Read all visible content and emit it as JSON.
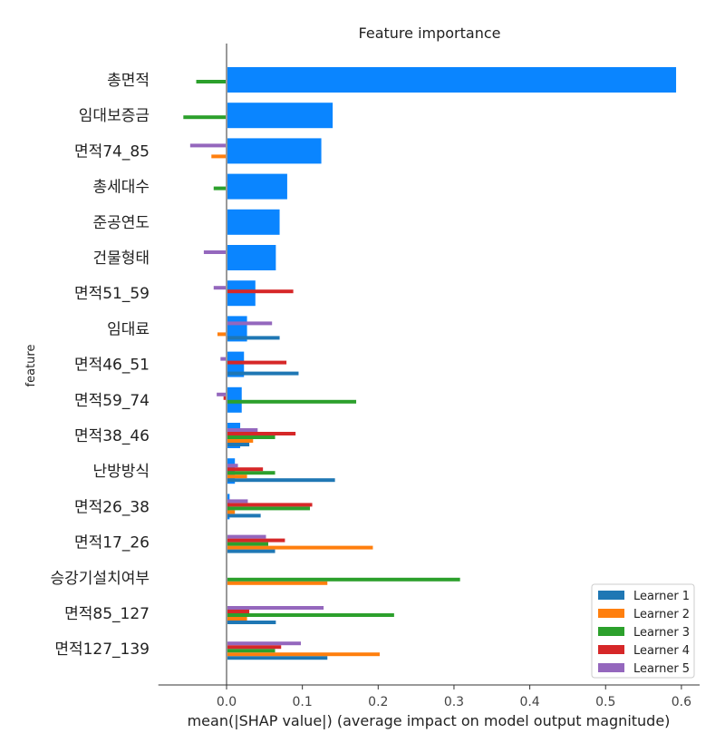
{
  "chart_data": {
    "type": "bar",
    "orientation": "horizontal",
    "title": "Feature importance",
    "xlabel": "mean(|SHAP value|) (average impact on model output magnitude)",
    "ylabel": "feature",
    "xlim": [
      -0.09,
      0.62
    ],
    "xticks": [
      "0.0",
      "0.1",
      "0.2",
      "0.3",
      "0.4",
      "0.5",
      "0.6"
    ],
    "legend_position": "bottom-right",
    "categories": [
      "총면적",
      "임대보증금",
      "면적74_85",
      "총세대수",
      "준공연도",
      "건물형태",
      "면적51_59",
      "임대료",
      "면적46_51",
      "면적59_74",
      "면적38_46",
      "난방방식",
      "면적26_38",
      "면적17_26",
      "승강기설치여부",
      "면적85_127",
      "면적127_139"
    ],
    "ensemble": {
      "color": "#0a85ff",
      "values": [
        0.593,
        0.14,
        0.125,
        0.08,
        0.07,
        0.065,
        0.038,
        0.027,
        0.023,
        0.02,
        0.018,
        0.011,
        0.004,
        0.0,
        0.0,
        0.0,
        0.0
      ]
    },
    "series": [
      {
        "name": "Learner 1",
        "color": "#1f77b4",
        "values": [
          0,
          0,
          0,
          0,
          0,
          0,
          0,
          0.07,
          0.095,
          0,
          0.03,
          0.143,
          0.045,
          0.064,
          0,
          0.065,
          0.133
        ]
      },
      {
        "name": "Learner 2",
        "color": "#ff7f0e",
        "values": [
          0,
          0,
          -0.02,
          0,
          0,
          0,
          0,
          -0.012,
          0,
          0,
          0.035,
          0.027,
          0.011,
          0.193,
          0.133,
          0.027,
          0.202
        ]
      },
      {
        "name": "Learner 3",
        "color": "#2ca02c",
        "values": [
          -0.04,
          -0.057,
          0,
          -0.017,
          0,
          0,
          0,
          0,
          0,
          0.171,
          0.064,
          0.064,
          0.11,
          0.055,
          0.308,
          0.221,
          0.064
        ]
      },
      {
        "name": "Learner 4",
        "color": "#d62728",
        "values": [
          0,
          0,
          0,
          0,
          0,
          0,
          0.088,
          0,
          0.079,
          -0.004,
          0.091,
          0.048,
          0.113,
          0.077,
          0,
          0.03,
          0.072
        ]
      },
      {
        "name": "Learner 5",
        "color": "#9467bd",
        "values": [
          0,
          0,
          -0.048,
          0,
          0,
          -0.03,
          -0.017,
          0.06,
          -0.008,
          -0.013,
          0.041,
          0.015,
          0.028,
          0.052,
          0,
          0.128,
          0.098
        ]
      }
    ]
  }
}
